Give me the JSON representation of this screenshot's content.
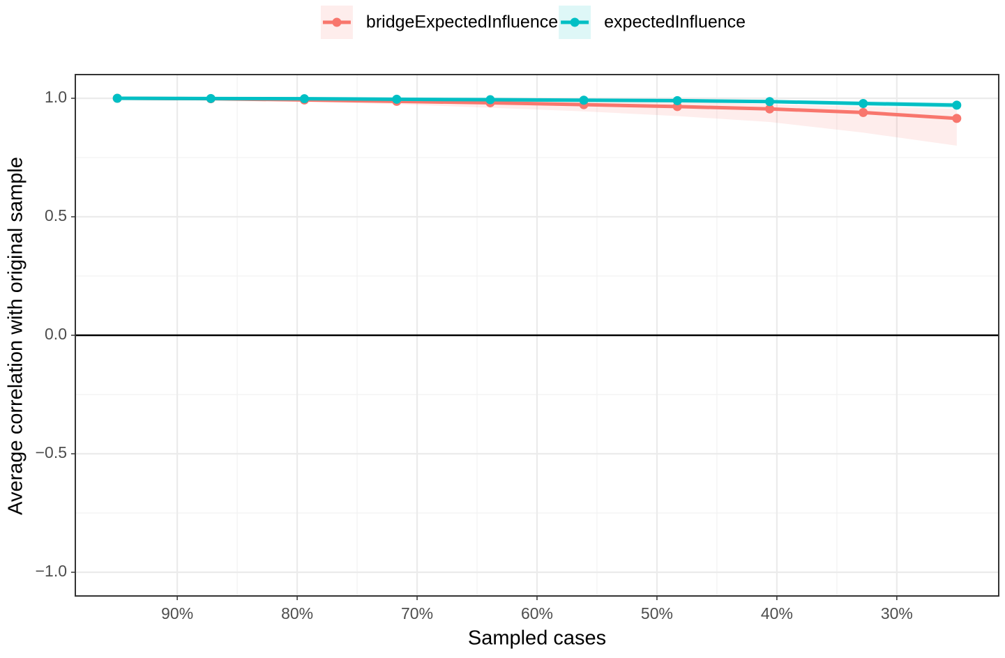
{
  "chart_data": {
    "type": "line",
    "x_label": "Sampled cases",
    "y_label": "Average correlation with original sample",
    "x": [
      95,
      87.2,
      79.4,
      71.7,
      63.9,
      56.1,
      48.3,
      40.6,
      32.8,
      25
    ],
    "xlim": [
      98.5,
      21.5
    ],
    "xticks": [
      {
        "value": 90,
        "label": "90%"
      },
      {
        "value": 80,
        "label": "80%"
      },
      {
        "value": 70,
        "label": "70%"
      },
      {
        "value": 60,
        "label": "60%"
      },
      {
        "value": 50,
        "label": "50%"
      },
      {
        "value": 40,
        "label": "40%"
      },
      {
        "value": 30,
        "label": "30%"
      }
    ],
    "ylim": [
      -1.1,
      1.1
    ],
    "yticks": [
      {
        "value": -1,
        "label": "−1.0"
      },
      {
        "value": -0.5,
        "label": "−0.5"
      },
      {
        "value": 0,
        "label": "0.0"
      },
      {
        "value": 0.5,
        "label": "0.5"
      },
      {
        "value": 1,
        "label": "1.0"
      }
    ],
    "hline": 0,
    "grid": true,
    "legend": "top",
    "series": [
      {
        "name": "bridgeExpectedInfluence",
        "color": "#F8766D",
        "values": [
          1.0,
          0.998,
          0.993,
          0.987,
          0.981,
          0.973,
          0.965,
          0.955,
          0.94,
          0.915
        ],
        "lower": [
          1.0,
          0.995,
          0.985,
          0.975,
          0.96,
          0.945,
          0.925,
          0.9,
          0.855,
          0.8
        ],
        "upper": [
          1.0,
          1.0,
          1.0,
          0.998,
          0.995,
          0.99,
          0.985,
          0.975,
          0.965,
          0.955
        ]
      },
      {
        "name": "expectedInfluence",
        "color": "#00BFC4",
        "values": [
          1.0,
          0.999,
          0.998,
          0.996,
          0.994,
          0.992,
          0.99,
          0.986,
          0.978,
          0.971
        ],
        "lower": [
          1.0,
          0.998,
          0.996,
          0.993,
          0.99,
          0.987,
          0.984,
          0.979,
          0.968,
          0.958
        ],
        "upper": [
          1.0,
          1.0,
          0.999,
          0.998,
          0.997,
          0.996,
          0.995,
          0.993,
          0.988,
          0.983
        ]
      }
    ]
  }
}
